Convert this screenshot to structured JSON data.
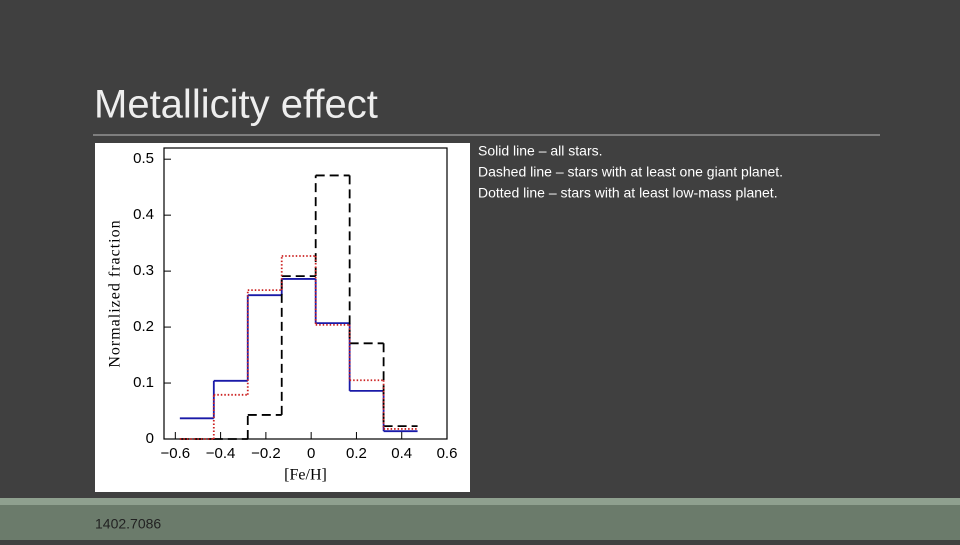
{
  "slide": {
    "title": "Metallicity effect",
    "notes": [
      "Solid line – all stars.",
      "Dashed line – stars with at least one giant planet.",
      "Dotted line – stars with at least low-mass planet."
    ],
    "footer": "1402.7086"
  },
  "chart_data": {
    "type": "histogram",
    "xlabel": "[Fe/H]",
    "ylabel": "Normalized fraction",
    "bins": [
      -0.58,
      -0.43,
      -0.28,
      -0.13,
      0.02,
      0.17,
      0.32,
      0.47
    ],
    "series": [
      {
        "color": "#1a1aa8",
        "dash": "solid",
        "values": [
          0.037,
          0.104,
          0.257,
          0.286,
          0.207,
          0.086,
          0.014
        ]
      },
      {
        "color": "#000000",
        "dash": "dashed",
        "values": [
          0,
          0,
          0.043,
          0.291,
          0.471,
          0.171,
          0.023
        ]
      },
      {
        "color": "#cc2222",
        "dash": "dotted",
        "values": [
          0,
          0.079,
          0.266,
          0.327,
          0.204,
          0.105,
          0.018
        ]
      }
    ],
    "xlim": [
      -0.65,
      0.6
    ],
    "ylim": [
      0,
      0.52
    ],
    "xticks": [
      {
        "value": -0.6,
        "label": "−0.6"
      },
      {
        "value": -0.4,
        "label": "−0.4"
      },
      {
        "value": -0.2,
        "label": "−0.2"
      },
      0,
      0.2,
      0.4,
      0.6
    ],
    "yticks": [
      0,
      0.1,
      0.2,
      0.3,
      0.4,
      0.5
    ]
  }
}
